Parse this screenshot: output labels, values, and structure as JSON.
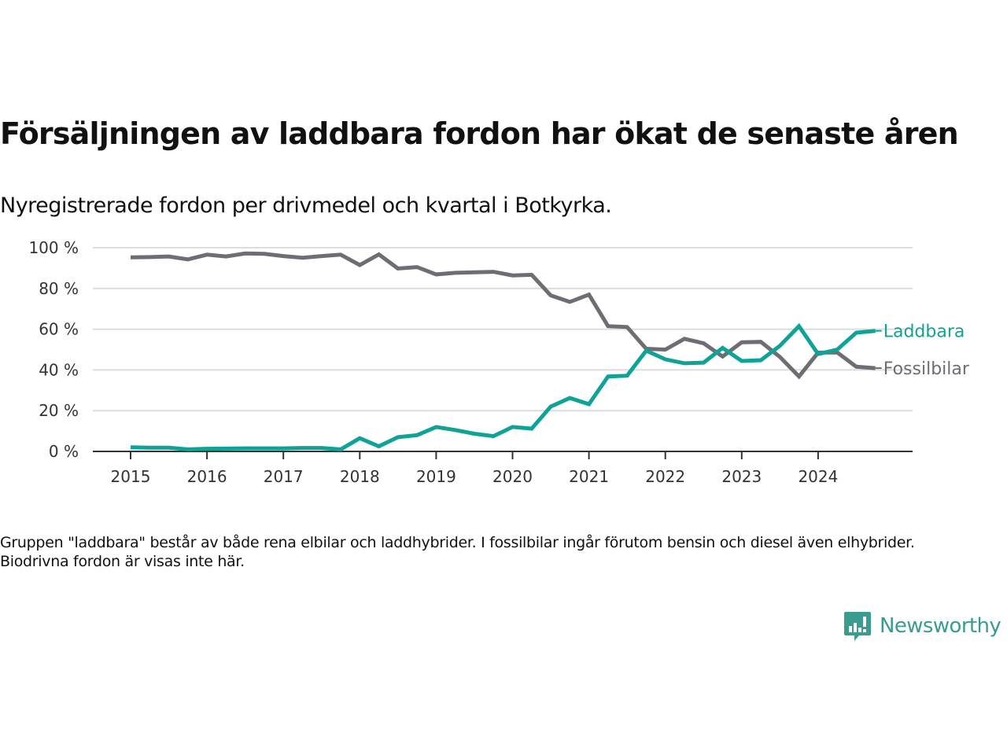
{
  "title": "Försäljningen av laddbara fordon har ökat de senaste åren",
  "subtitle": "Nyregistrerade fordon per drivmedel och kvartal i Botkyrka.",
  "footnote": "Gruppen \"laddbara\" består av både rena elbilar och laddhybrider. I fossilbilar ingår förutom bensin och diesel även elhybrider. Biodrivna fordon är visas inte här.",
  "logo": {
    "text": "Newsworthy",
    "icon": "newsworthy-chart-bubble-icon",
    "color": "#3a9b8f"
  },
  "chart_data": {
    "type": "line",
    "title": "Försäljningen av laddbara fordon har ökat de senaste åren",
    "subtitle": "Nyregistrerade fordon per drivmedel och kvartal i Botkyrka.",
    "xlabel": "",
    "ylabel": "",
    "x_start": "2015 Q1",
    "x_frequency": "quarterly",
    "x": [
      "2015Q1",
      "2015Q2",
      "2015Q3",
      "2015Q4",
      "2016Q1",
      "2016Q2",
      "2016Q3",
      "2016Q4",
      "2017Q1",
      "2017Q2",
      "2017Q3",
      "2017Q4",
      "2018Q1",
      "2018Q2",
      "2018Q3",
      "2018Q4",
      "2019Q1",
      "2019Q2",
      "2019Q3",
      "2019Q4",
      "2020Q1",
      "2020Q2",
      "2020Q3",
      "2020Q4",
      "2021Q1",
      "2021Q2",
      "2021Q3",
      "2021Q4",
      "2022Q1",
      "2022Q2",
      "2022Q3",
      "2022Q4",
      "2023Q1",
      "2023Q2",
      "2023Q3",
      "2023Q4",
      "2024Q1",
      "2024Q2",
      "2024Q3",
      "2024Q4"
    ],
    "x_ticks": [
      "2015",
      "2016",
      "2017",
      "2018",
      "2019",
      "2020",
      "2021",
      "2022",
      "2023",
      "2024"
    ],
    "y_ticks": [
      0,
      20,
      40,
      60,
      80,
      100
    ],
    "y_tick_labels": [
      "0 %",
      "20 %",
      "40 %",
      "60 %",
      "80 %",
      "100 %"
    ],
    "ylim": [
      0,
      100
    ],
    "grid": true,
    "legend": "inline-end-labels",
    "series": [
      {
        "name": "Laddbara",
        "color": "#0fa397",
        "values": [
          2.0,
          1.8,
          1.8,
          1.0,
          1.3,
          1.4,
          1.5,
          1.5,
          1.5,
          1.7,
          1.7,
          1.0,
          6.5,
          2.5,
          7.0,
          8.0,
          12.0,
          10.5,
          8.7,
          7.5,
          12.0,
          11.2,
          22.0,
          26.2,
          23.2,
          36.8,
          37.2,
          49.5,
          45.2,
          43.3,
          43.6,
          50.8,
          44.4,
          44.8,
          51.8,
          61.5,
          47.8,
          50.0,
          58.3,
          59.2
        ]
      },
      {
        "name": "Fossilbilar",
        "color": "#6e6d73",
        "values": [
          95.3,
          95.4,
          95.7,
          94.3,
          96.6,
          95.7,
          97.2,
          97.0,
          95.9,
          95.1,
          95.9,
          96.6,
          91.5,
          96.7,
          89.8,
          90.5,
          86.9,
          87.7,
          87.9,
          88.2,
          86.4,
          86.7,
          76.6,
          73.4,
          77.0,
          61.5,
          61.1,
          50.4,
          50.0,
          55.3,
          53.1,
          46.6,
          53.6,
          53.8,
          46.4,
          36.8,
          48.5,
          48.6,
          41.6,
          40.9
        ]
      }
    ]
  }
}
